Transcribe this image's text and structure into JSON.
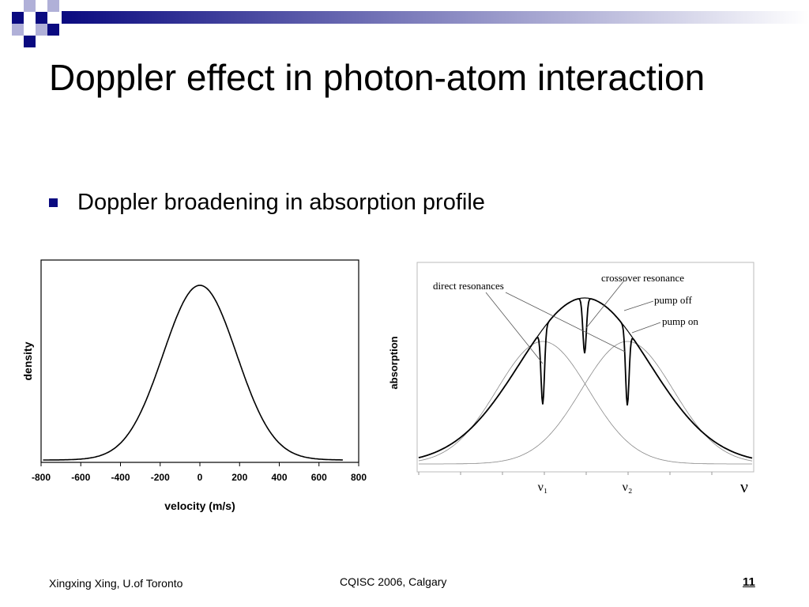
{
  "slide": {
    "title": "Doppler effect in photon-atom interaction",
    "bullet": "Doppler broadening in absorption profile",
    "footer_left": "Xingxing Xing, U.of Toronto",
    "footer_center": "CQISC 2006, Calgary",
    "page_number": "11",
    "accent_color": "#0a0a80"
  },
  "chart_data": [
    {
      "type": "line",
      "title": "",
      "xlabel": "velocity (m/s)",
      "ylabel": "density",
      "xticks": [
        "-800",
        "-600",
        "-400",
        "-200",
        "0",
        "200",
        "400",
        "600",
        "800"
      ],
      "xlim": [
        -800,
        800
      ],
      "series": [
        {
          "x": [
            -800,
            -700,
            -600,
            -500,
            -400,
            -300,
            -200,
            -100,
            0,
            100,
            200,
            300,
            400,
            500,
            600,
            700,
            800
          ],
          "y": [
            0.0,
            0.0,
            0.01,
            0.04,
            0.13,
            0.33,
            0.61,
            0.89,
            1.0,
            0.89,
            0.61,
            0.33,
            0.13,
            0.04,
            0.01,
            0.0,
            0.0
          ]
        }
      ]
    },
    {
      "type": "line",
      "title": "",
      "xlabel": "ν",
      "ylabel": "absorption",
      "xtick_labels": [
        "ν₁",
        "ν₂"
      ],
      "annotations": [
        "direct resonances",
        "crossover resonance",
        "pump off",
        "pump on"
      ]
    }
  ]
}
